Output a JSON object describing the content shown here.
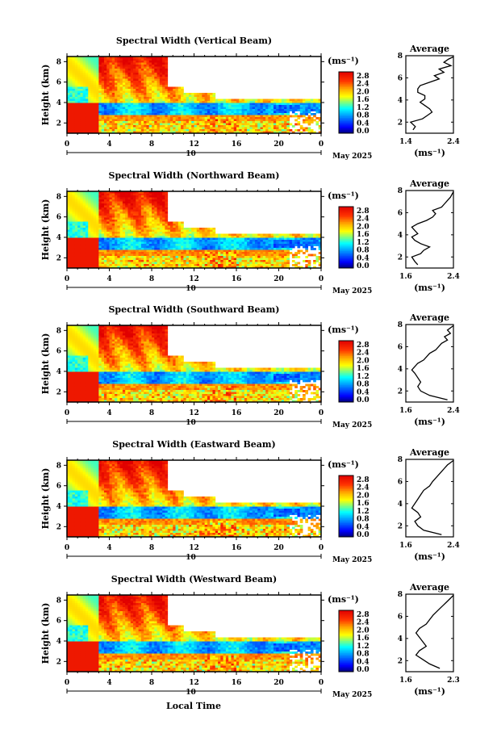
{
  "figure": {
    "xlabel": "Local Time",
    "date_label": "May 2025"
  },
  "chart_data": [
    {
      "type": "heatmap",
      "title": "Spectral Width (Vertical Beam)",
      "ylabel": "Height (km)",
      "y_ticks": [
        "2",
        "4",
        "6",
        "8"
      ],
      "x_ticks": [
        "0",
        "4",
        "8",
        "12",
        "16",
        "20",
        "0"
      ],
      "day_label": "10",
      "date_label": "May 2025",
      "colorbar": {
        "unit": "(ms⁻¹)",
        "labels": [
          "2.8",
          "2.4",
          "2.0",
          "1.6",
          "1.2",
          "0.8",
          "0.4",
          "0.0"
        ],
        "range": [
          0.0,
          2.8
        ]
      },
      "profile": {
        "title": "Average",
        "xlabel": "(ms⁻¹)",
        "x_ticks": [
          "1.4",
          "2.4"
        ],
        "xlim": [
          1.4,
          2.4
        ],
        "y_ticks": [
          "2",
          "4",
          "6",
          "8"
        ],
        "ylim": [
          1,
          8
        ],
        "x": [
          1.55,
          1.6,
          1.5,
          1.75,
          1.85,
          1.95,
          1.9,
          1.8,
          1.7,
          1.8,
          1.8,
          1.65,
          1.65,
          1.7,
          1.9,
          2.1,
          2.0,
          2.2,
          2.1,
          2.35,
          2.2,
          2.3,
          2.4
        ],
        "y": [
          1.3,
          1.6,
          2.0,
          2.3,
          2.6,
          2.9,
          3.2,
          3.5,
          3.8,
          4.1,
          4.4,
          4.7,
          5.0,
          5.3,
          5.6,
          5.9,
          6.2,
          6.5,
          6.8,
          7.1,
          7.4,
          7.7,
          7.9
        ]
      }
    },
    {
      "type": "heatmap",
      "title": "Spectral Width (Northward Beam)",
      "ylabel": "Height (km)",
      "y_ticks": [
        "2",
        "4",
        "6",
        "8"
      ],
      "x_ticks": [
        "0",
        "4",
        "8",
        "12",
        "16",
        "20",
        "0"
      ],
      "day_label": "10",
      "date_label": "May 2025",
      "colorbar": {
        "unit": "(ms⁻¹)",
        "labels": [
          "2.8",
          "2.4",
          "2.0",
          "1.6",
          "1.2",
          "0.8",
          "0.4",
          "0.0"
        ],
        "range": [
          0.0,
          2.8
        ]
      },
      "profile": {
        "title": "Average",
        "xlabel": "(ms⁻¹)",
        "x_ticks": [
          "1.6",
          "2.4"
        ],
        "xlim": [
          1.6,
          2.4
        ],
        "y_ticks": [
          "2",
          "4",
          "6",
          "8"
        ],
        "ylim": [
          1,
          8
        ],
        "x": [
          1.8,
          1.75,
          1.7,
          1.85,
          1.9,
          2.0,
          1.85,
          1.75,
          1.7,
          1.8,
          1.75,
          1.7,
          1.8,
          1.95,
          2.05,
          2.1,
          2.05,
          2.2,
          2.25,
          2.3,
          2.35,
          2.4
        ],
        "y": [
          1.3,
          1.6,
          2.0,
          2.3,
          2.6,
          2.9,
          3.2,
          3.5,
          3.8,
          4.1,
          4.4,
          4.7,
          5.0,
          5.3,
          5.6,
          5.9,
          6.2,
          6.5,
          6.8,
          7.1,
          7.4,
          7.9
        ]
      }
    },
    {
      "type": "heatmap",
      "title": "Spectral Width (Southward Beam)",
      "ylabel": "Height (km)",
      "y_ticks": [
        "2",
        "4",
        "6",
        "8"
      ],
      "x_ticks": [
        "0",
        "4",
        "8",
        "12",
        "16",
        "20",
        "0"
      ],
      "day_label": "10",
      "date_label": "May 2025",
      "colorbar": {
        "unit": "(ms⁻¹)",
        "labels": [
          "2.8",
          "2.4",
          "2.0",
          "1.6",
          "1.2",
          "0.8",
          "0.4",
          "0.0"
        ],
        "range": [
          0.0,
          2.8
        ]
      },
      "profile": {
        "title": "Average",
        "xlabel": "(ms⁻¹)",
        "x_ticks": [
          "1.6",
          "2.4"
        ],
        "xlim": [
          1.6,
          2.4
        ],
        "y_ticks": [
          "2",
          "4",
          "6",
          "8"
        ],
        "ylim": [
          1,
          8
        ],
        "x": [
          2.3,
          2.0,
          1.85,
          1.8,
          1.85,
          1.8,
          1.75,
          1.7,
          1.75,
          1.8,
          1.9,
          1.95,
          2.0,
          2.1,
          2.15,
          2.2,
          2.3,
          2.25,
          2.35,
          2.3,
          2.4
        ],
        "y": [
          1.2,
          1.6,
          2.0,
          2.4,
          2.8,
          3.2,
          3.6,
          3.9,
          4.2,
          4.5,
          4.8,
          5.1,
          5.4,
          5.7,
          6.0,
          6.3,
          6.6,
          6.9,
          7.2,
          7.5,
          7.9
        ]
      }
    },
    {
      "type": "heatmap",
      "title": "Spectral Width (Eastward Beam)",
      "ylabel": "Height (km)",
      "y_ticks": [
        "2",
        "4",
        "6",
        "8"
      ],
      "x_ticks": [
        "0",
        "4",
        "8",
        "12",
        "16",
        "20",
        "0"
      ],
      "day_label": "10",
      "date_label": "May 2025",
      "colorbar": {
        "unit": "(ms⁻¹)",
        "labels": [
          "2.8",
          "2.4",
          "2.0",
          "1.6",
          "1.2",
          "0.8",
          "0.4",
          "0.0"
        ],
        "range": [
          0.0,
          2.8
        ]
      },
      "profile": {
        "title": "Average",
        "xlabel": "(ms⁻¹)",
        "x_ticks": [
          "1.6",
          "2.4"
        ],
        "xlim": [
          1.6,
          2.4
        ],
        "y_ticks": [
          "2",
          "4",
          "6",
          "8"
        ],
        "ylim": [
          1,
          8
        ],
        "x": [
          2.2,
          1.9,
          1.8,
          1.75,
          1.85,
          1.8,
          1.7,
          1.75,
          1.8,
          1.85,
          1.9,
          2.0,
          2.05,
          2.1,
          2.15,
          2.2,
          2.25,
          2.3,
          2.35,
          2.4
        ],
        "y": [
          1.2,
          1.6,
          2.0,
          2.4,
          2.8,
          3.2,
          3.6,
          4.0,
          4.4,
          4.8,
          5.2,
          5.6,
          6.0,
          6.3,
          6.6,
          6.9,
          7.2,
          7.5,
          7.7,
          7.9
        ]
      }
    },
    {
      "type": "heatmap",
      "title": "Spectral Width (Westward Beam)",
      "ylabel": "Height (km)",
      "y_ticks": [
        "2",
        "4",
        "6",
        "8"
      ],
      "x_ticks": [
        "0",
        "4",
        "8",
        "12",
        "16",
        "20",
        "0"
      ],
      "day_label": "10",
      "date_label": "May 2025",
      "colorbar": {
        "unit": "(ms⁻¹)",
        "labels": [
          "2.8",
          "2.4",
          "2.0",
          "1.6",
          "1.2",
          "0.8",
          "0.4",
          "0.0"
        ],
        "range": [
          0.0,
          2.8
        ]
      },
      "profile": {
        "title": "Average",
        "xlabel": "(ms⁻¹)",
        "x_ticks": [
          "1.6",
          "2.3"
        ],
        "xlim": [
          1.6,
          2.3
        ],
        "y_ticks": [
          "2",
          "4",
          "6",
          "8"
        ],
        "ylim": [
          1,
          8
        ],
        "x": [
          2.1,
          1.95,
          1.85,
          1.75,
          1.8,
          1.9,
          1.85,
          1.8,
          1.75,
          1.8,
          1.9,
          1.95,
          2.0,
          2.05,
          2.1,
          2.15,
          2.2,
          2.25,
          2.3
        ],
        "y": [
          1.3,
          1.7,
          2.1,
          2.5,
          2.9,
          3.3,
          3.7,
          4.1,
          4.5,
          4.9,
          5.3,
          5.7,
          6.1,
          6.4,
          6.7,
          7.0,
          7.3,
          7.6,
          7.9
        ]
      }
    }
  ]
}
